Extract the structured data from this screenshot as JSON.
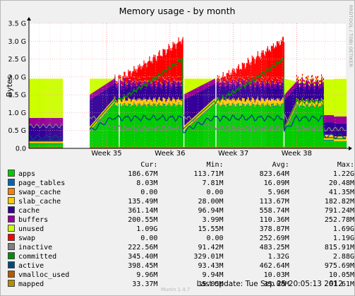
{
  "chart_data": {
    "type": "area",
    "title": "Memory usage - by month",
    "ylabel": "Bytes",
    "xlabel": "",
    "ylim": [
      0,
      3.5
    ],
    "yunit": "G",
    "y_ticks": [
      "0.0",
      "0.5 G",
      "1.0 G",
      "1.5 G",
      "2.0 G",
      "2.5 G",
      "3.0 G",
      "3.5 G"
    ],
    "x_ticks": [
      "Week 35",
      "Week 36",
      "Week 37",
      "Week 38"
    ],
    "grid": true,
    "stacked": true,
    "stack_order": [
      "apps",
      "page_tables",
      "swap_cache",
      "slab_cache",
      "cache",
      "buffers",
      "unused",
      "swap"
    ],
    "line_series": [
      "inactive",
      "committed",
      "active",
      "vmalloc_used",
      "mapped"
    ],
    "approx_profile_gb": {
      "x": [
        "Week 35",
        "Week 36",
        "Week 37",
        "Week 38"
      ],
      "apps_level": [
        1.1,
        1.1,
        1.2,
        1.2
      ],
      "total_with_swap_peak": [
        3.1,
        3.2,
        3.15,
        1.95
      ]
    }
  },
  "legend": {
    "headers": {
      "cur": "Cur:",
      "min": "Min:",
      "avg": "Avg:",
      "max": "Max:"
    },
    "rows": [
      {
        "name": "apps",
        "color": "#00cc00",
        "cur": "186.67M",
        "min": "113.71M",
        "avg": "823.64M",
        "max": "1.22G"
      },
      {
        "name": "page_tables",
        "color": "#0066b3",
        "cur": "8.03M",
        "min": "7.81M",
        "avg": "16.09M",
        "max": "20.48M"
      },
      {
        "name": "swap_cache",
        "color": "#ff8000",
        "cur": "0.00",
        "min": "0.00",
        "avg": "5.96M",
        "max": "41.35M"
      },
      {
        "name": "slab_cache",
        "color": "#ffcc00",
        "cur": "135.49M",
        "min": "28.00M",
        "avg": "113.67M",
        "max": "182.82M"
      },
      {
        "name": "cache",
        "color": "#330099",
        "cur": "361.14M",
        "min": "96.94M",
        "avg": "558.74M",
        "max": "791.24M"
      },
      {
        "name": "buffers",
        "color": "#990099",
        "cur": "200.55M",
        "min": "3.99M",
        "avg": "110.36M",
        "max": "252.78M"
      },
      {
        "name": "unused",
        "color": "#ccff00",
        "cur": "1.09G",
        "min": "15.55M",
        "avg": "378.87M",
        "max": "1.69G"
      },
      {
        "name": "swap",
        "color": "#ff0000",
        "cur": "0.00",
        "min": "0.00",
        "avg": "252.69M",
        "max": "1.19G"
      },
      {
        "name": "inactive",
        "color": "#808080",
        "cur": "222.56M",
        "min": "91.42M",
        "avg": "483.25M",
        "max": "815.91M"
      },
      {
        "name": "committed",
        "color": "#008f00",
        "cur": "345.40M",
        "min": "329.01M",
        "avg": "1.32G",
        "max": "2.88G"
      },
      {
        "name": "active",
        "color": "#00487d",
        "cur": "398.45M",
        "min": "93.43M",
        "avg": "462.64M",
        "max": "975.69M"
      },
      {
        "name": "vmalloc_used",
        "color": "#b35a00",
        "cur": "9.96M",
        "min": "9.94M",
        "avg": "10.03M",
        "max": "10.05M"
      },
      {
        "name": "mapped",
        "color": "#b38f00",
        "cur": "33.37M",
        "min": "15.05M",
        "avg": "35.08M",
        "max": "61.61M"
      }
    ]
  },
  "footer": {
    "last_update_label": "Last update:",
    "last_update_value": "Tue Sep 25 20:05:13 2012",
    "version": "Munin 1.4.7",
    "side_label": "RRDTOOL / TOBI OETIKER"
  }
}
